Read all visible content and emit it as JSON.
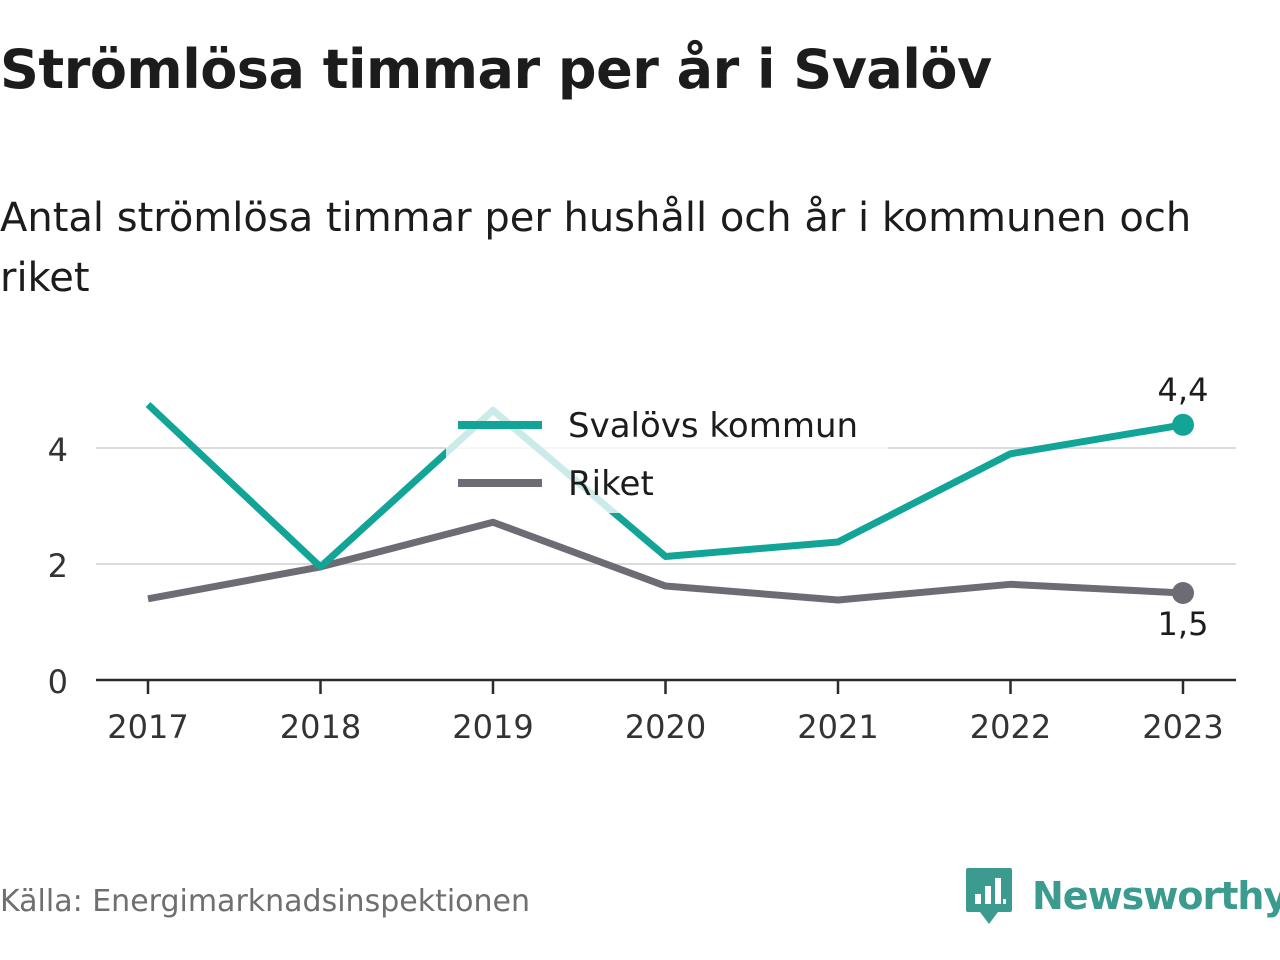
{
  "title": "Strömlösa timmar per år i Svalöv",
  "subtitle": "Antal strömlösa timmar per hushåll och år i kommunen och riket",
  "source": "Källa: Energimarknadsinspektionen",
  "brand": {
    "name": "Newsworthy",
    "icon": "newsworthy-logo-icon",
    "color": "#3a9b8e"
  },
  "chart_data": {
    "type": "line",
    "title": "Strömlösa timmar per år i Svalöv",
    "subtitle": "Antal strömlösa timmar per hushåll och år i kommunen och riket",
    "xlabel": "",
    "ylabel": "",
    "x": [
      "2017",
      "2018",
      "2019",
      "2020",
      "2021",
      "2022",
      "2023"
    ],
    "ylim": [
      0,
      4.75
    ],
    "yticks": [
      0,
      2,
      4
    ],
    "ytick_labels": [
      "0",
      "2",
      "4"
    ],
    "grid": true,
    "legend_position": "top-center",
    "series": [
      {
        "name": "Svalövs kommun",
        "color": "#12a597",
        "values": [
          4.75,
          1.95,
          4.65,
          2.13,
          2.38,
          3.9,
          4.4
        ],
        "end_label": "4,4"
      },
      {
        "name": "Riket",
        "color": "#6d6c75",
        "values": [
          1.4,
          1.95,
          2.72,
          1.62,
          1.38,
          1.65,
          1.5
        ],
        "end_label": "1,5"
      }
    ]
  }
}
